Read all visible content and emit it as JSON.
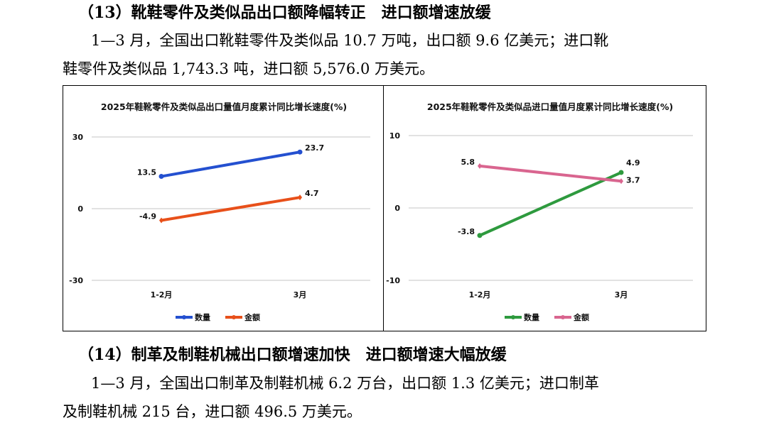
{
  "section13": {
    "heading": "（13）靴鞋零件及类似品出口额降幅转正　进口额增速放缓",
    "lines": [
      "1—3 月，全国出口靴鞋零件及类似品 10.7 万吨，出口额 9.6 亿美元；进口靴",
      "鞋零件及类似品 1,743.3 吨，进口额 5,576.0 万美元。"
    ]
  },
  "section14": {
    "heading": "（14）制革及制鞋机械出口额增速加快　进口额增速大幅放缓",
    "lines": [
      "1—3 月，全国出口制革及制鞋机械 6.2 万台，出口额 1.3 亿美元；进口制革",
      "及制鞋机械 215 台，进口额 496.5 万美元。"
    ]
  },
  "chart_data": [
    {
      "type": "line",
      "title": "2025年鞋靴零件及类似品出口量值月度累计同比增长速度(%)",
      "categories": [
        "1-2月",
        "3月"
      ],
      "ylim": [
        -30,
        30
      ],
      "yticks": [
        "30",
        "0",
        "-30"
      ],
      "tick_values": [
        30,
        0,
        -30
      ],
      "grid": true,
      "legend_position": "bottom",
      "series": [
        {
          "name": "数量",
          "values": [
            13.5,
            23.7
          ],
          "labels": [
            "13.5",
            "23.7"
          ],
          "color": "#2450d0",
          "marker": "circle"
        },
        {
          "name": "金额",
          "values": [
            -4.9,
            4.7
          ],
          "labels": [
            "-4.9",
            "4.7"
          ],
          "color": "#e8501a",
          "marker": "diamond"
        }
      ]
    },
    {
      "type": "line",
      "title": "2025年鞋靴零件及类似品进口量值月度累计同比增长速度(%)",
      "categories": [
        "1-2月",
        "3月"
      ],
      "ylim": [
        -10,
        10
      ],
      "yticks": [
        "10",
        "0",
        "-10"
      ],
      "tick_values": [
        10,
        0,
        -10
      ],
      "grid": true,
      "legend_position": "bottom",
      "series": [
        {
          "name": "数量",
          "values": [
            -3.8,
            4.9
          ],
          "labels": [
            "-3.8",
            "4.9"
          ],
          "color": "#2e9a3e",
          "marker": "circle"
        },
        {
          "name": "金额",
          "values": [
            5.8,
            3.7
          ],
          "labels": [
            "5.8",
            "3.7"
          ],
          "color": "#d9658f",
          "marker": "diamond"
        }
      ]
    }
  ]
}
